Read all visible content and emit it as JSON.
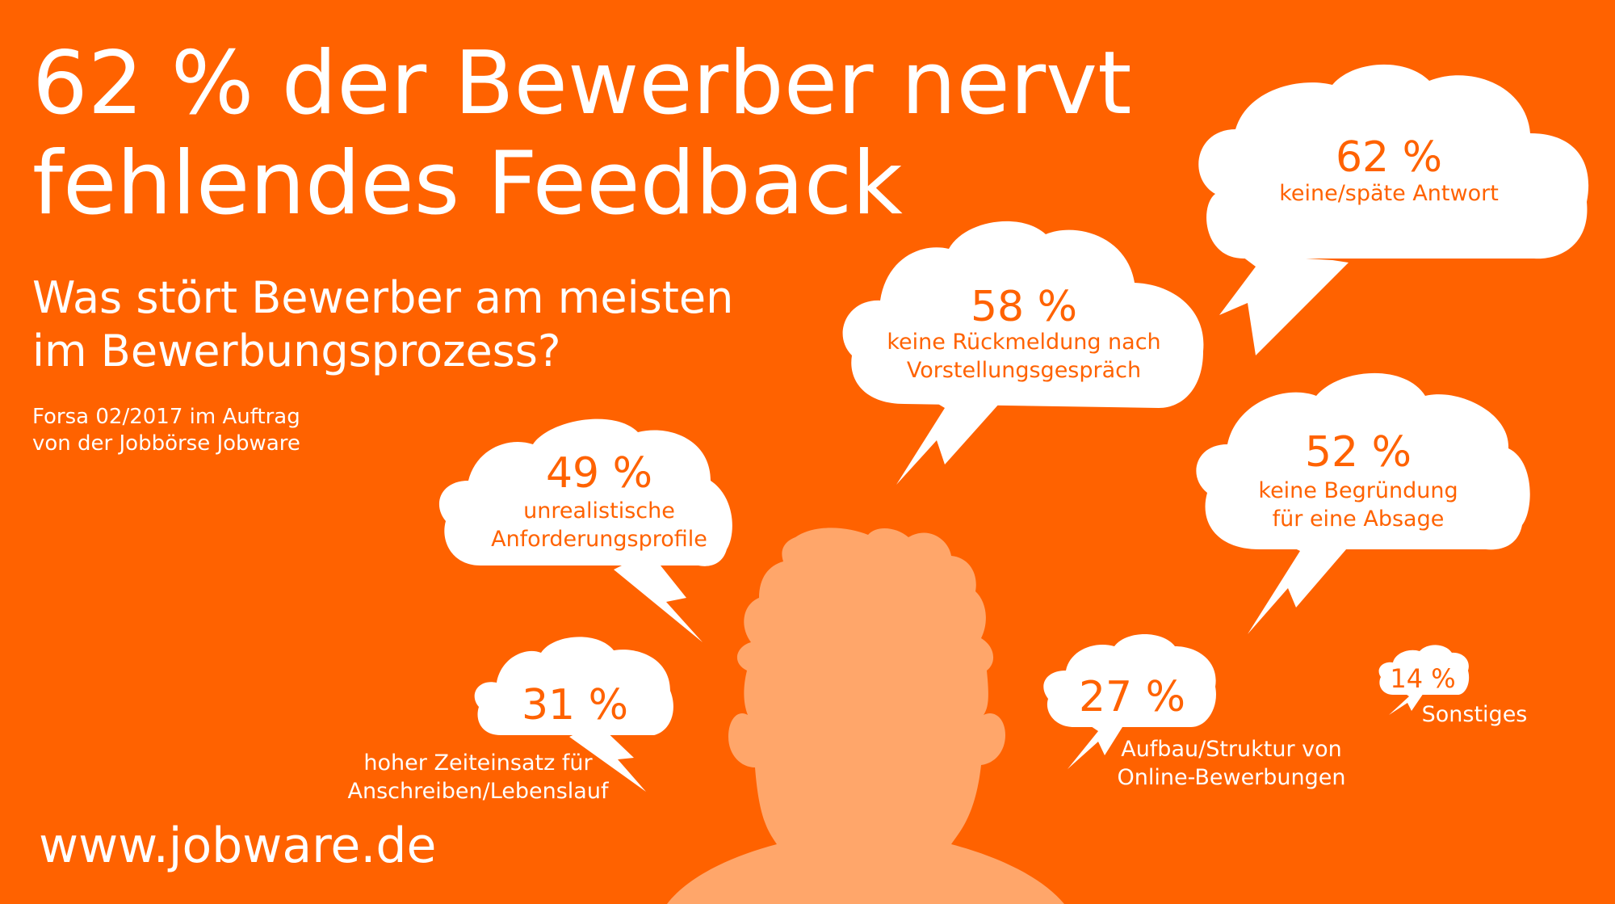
{
  "title": {
    "line1": "62 % der Bewerber nervt",
    "line2": "fehlendes Feedback"
  },
  "subtitle": {
    "line1": "Was stört Bewerber am meisten",
    "line2": "im Bewerbungsprozess?"
  },
  "source": {
    "line1": "Forsa 02/2017 im Auftrag",
    "line2": "von der Jobbörse Jobware"
  },
  "url": "www.jobware.de",
  "colors": {
    "background": "#ff6200",
    "cloud": "#ffffff",
    "person": "#ffa66a",
    "accent_text": "#ff6200"
  },
  "items": [
    {
      "percent": "62 %",
      "value": 62,
      "label_line1": "keine/späte Antwort",
      "label_line2": ""
    },
    {
      "percent": "58 %",
      "value": 58,
      "label_line1": "keine Rückmeldung nach",
      "label_line2": "Vorstellungsgespräch"
    },
    {
      "percent": "52 %",
      "value": 52,
      "label_line1": "keine Begründung",
      "label_line2": "für eine Absage"
    },
    {
      "percent": "49 %",
      "value": 49,
      "label_line1": "unrealistische",
      "label_line2": "Anforderungsprofile"
    },
    {
      "percent": "31 %",
      "value": 31,
      "label_line1": "hoher Zeiteinsatz für",
      "label_line2": "Anschreiben/Lebenslauf"
    },
    {
      "percent": "27 %",
      "value": 27,
      "label_line1": "Aufbau/Struktur von",
      "label_line2": "Online-Bewerbungen"
    },
    {
      "percent": "14 %",
      "value": 14,
      "label_line1": "Sonstiges",
      "label_line2": ""
    }
  ]
}
